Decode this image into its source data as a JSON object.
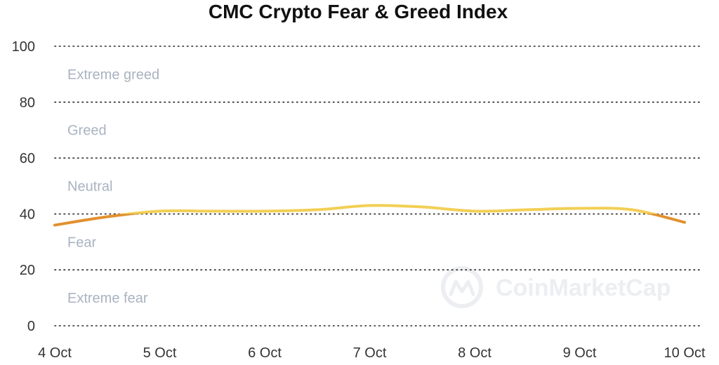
{
  "chart_data": {
    "type": "line",
    "title": "CMC Crypto Fear & Greed Index",
    "xlabel": "",
    "ylabel": "",
    "categories": [
      "4 Oct",
      "5 Oct",
      "6 Oct",
      "7 Oct",
      "8 Oct",
      "9 Oct",
      "10 Oct"
    ],
    "y_ticks": [
      "0",
      "20",
      "40",
      "60",
      "80",
      "100"
    ],
    "ylim": [
      0,
      100
    ],
    "grid": true,
    "zones": [
      {
        "label": "Extreme greed",
        "from": 80,
        "to": 100
      },
      {
        "label": "Greed",
        "from": 60,
        "to": 80
      },
      {
        "label": "Neutral",
        "from": 40,
        "to": 60
      },
      {
        "label": "Fear",
        "from": 20,
        "to": 40
      },
      {
        "label": "Extreme fear",
        "from": 0,
        "to": 20
      }
    ],
    "series": [
      {
        "x": [
          0,
          0.5,
          1,
          1.5,
          2,
          2.5,
          3,
          3.5,
          4,
          4.5,
          5,
          5.5,
          6
        ],
        "values": [
          36,
          39,
          41,
          41,
          41,
          41.5,
          43,
          42.5,
          41,
          41.5,
          42,
          41.5,
          37
        ]
      }
    ],
    "colors": {
      "neutral": "#f2cf55",
      "fear": "#e1912f"
    },
    "watermark": "CoinMarketCap"
  }
}
